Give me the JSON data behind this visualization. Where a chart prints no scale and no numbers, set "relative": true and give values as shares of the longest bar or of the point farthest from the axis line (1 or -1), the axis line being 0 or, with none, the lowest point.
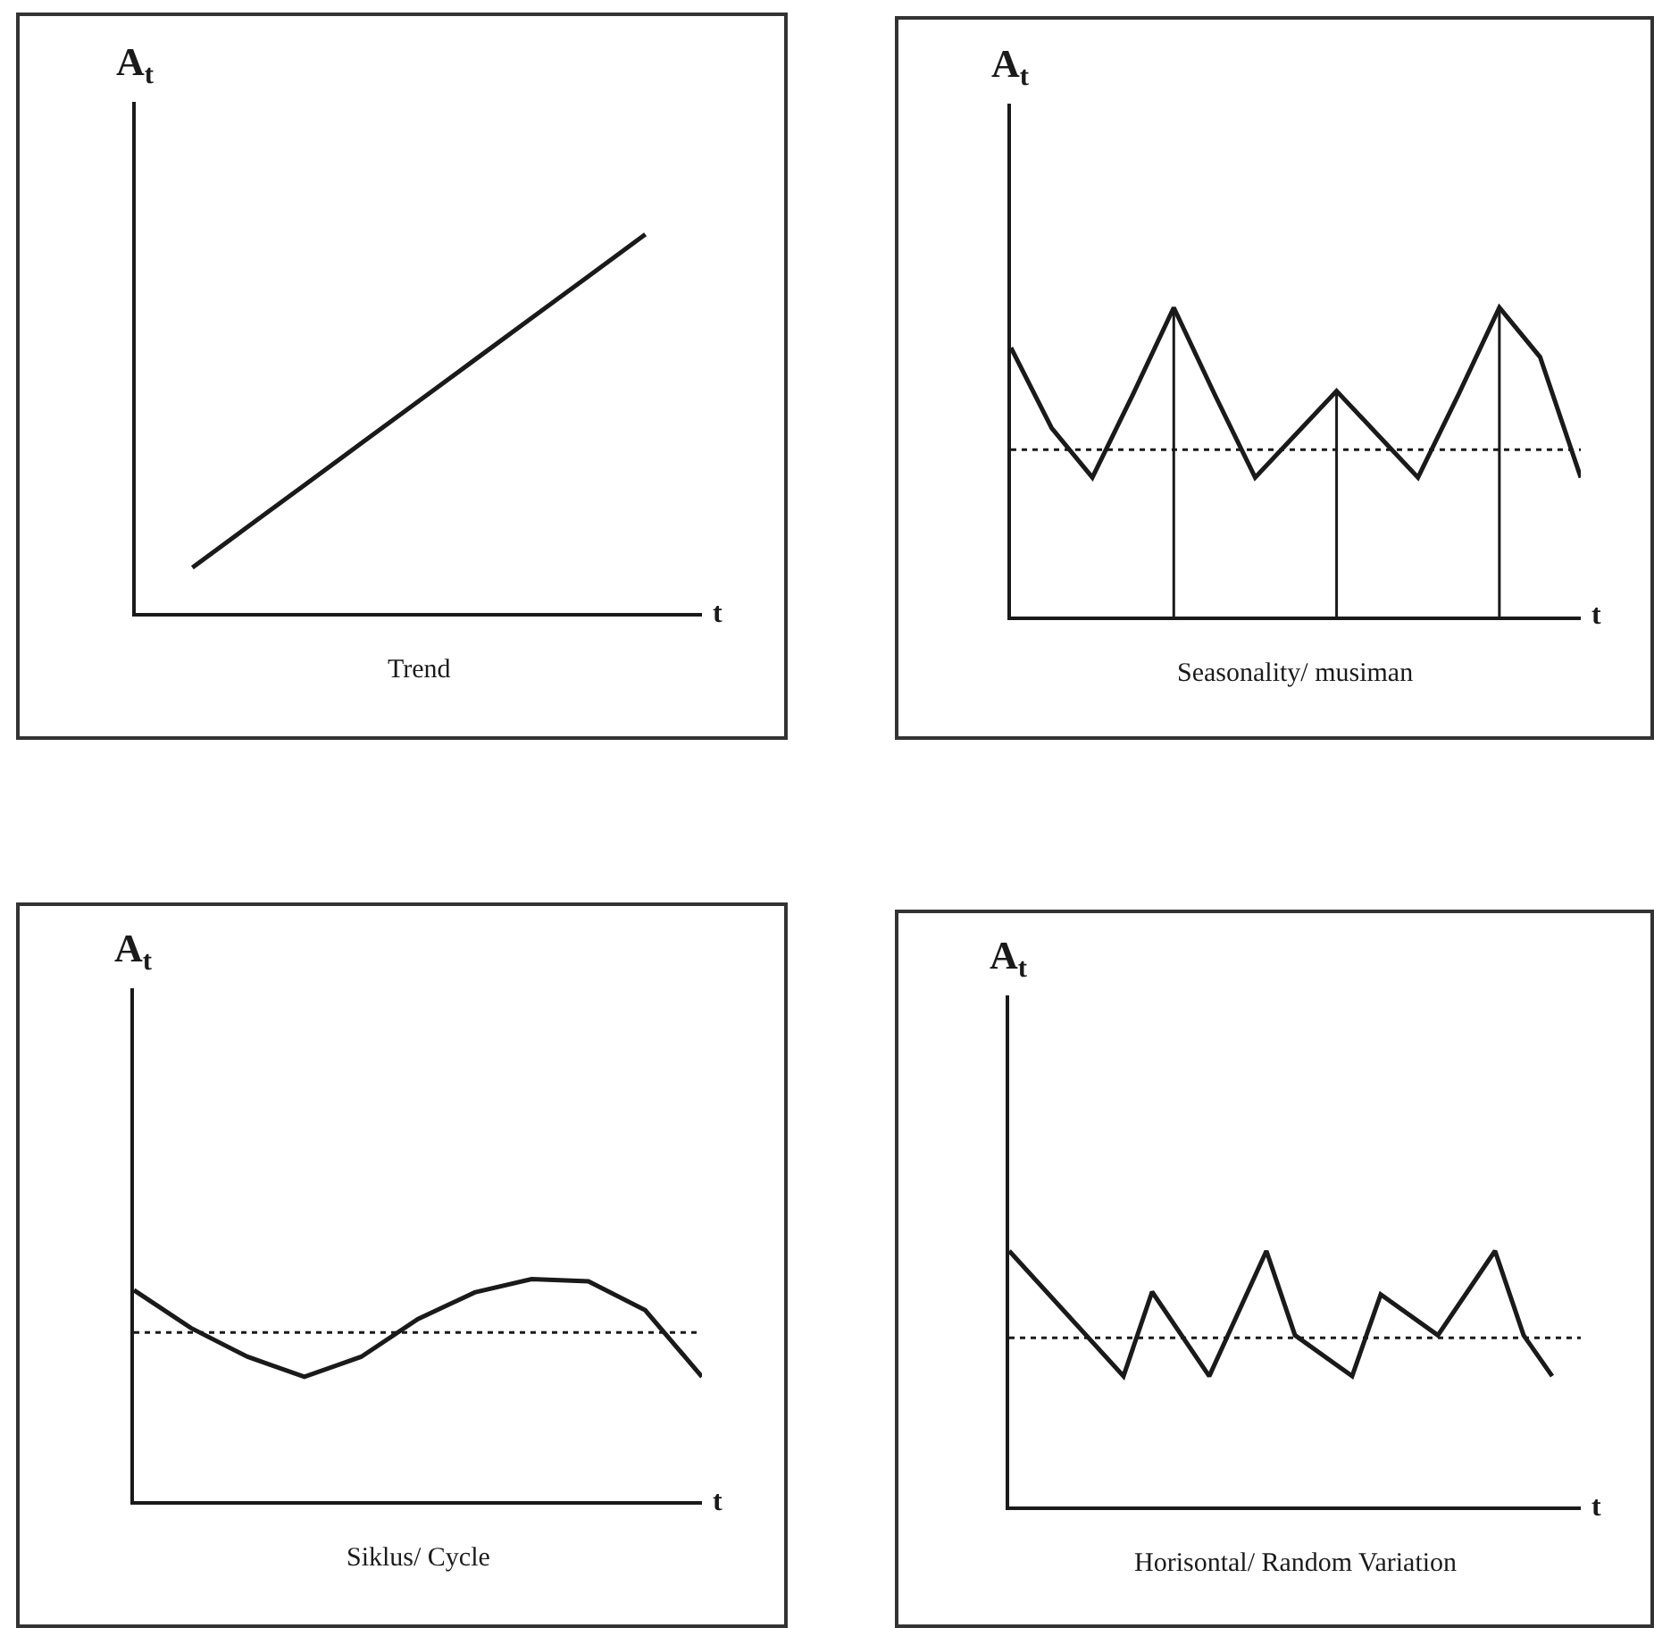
{
  "chart_data": [
    {
      "type": "line",
      "title": "Trend",
      "xlabel": "t",
      "ylabel": "A$_{t}$",
      "relative": true,
      "marker": "none",
      "categories": [
        null,
        null,
        null,
        null,
        null,
        null,
        null,
        null,
        null,
        null,
        null
      ],
      "series": [
        {
          "color": "#1a1a1a",
          "values": [
            null,
            0.12,
            0.23,
            0.34,
            0.45,
            0.56,
            0.67,
            0.78,
            0.89,
            1.0,
            null
          ]
        }
      ]
    },
    {
      "type": "line",
      "title": "Seasonality/ musiman",
      "xlabel": "t",
      "ylabel": "A$_{t}$",
      "relative": true,
      "marker": "none",
      "categories": [
        null,
        null,
        null,
        null,
        null,
        null,
        null,
        null,
        null,
        null,
        null,
        null,
        null,
        null,
        null
      ],
      "series": [
        {
          "color": "#1a1a1a",
          "values": [
            0.87,
            0.61,
            0.45,
            0.72,
            1.0,
            0.72,
            0.45,
            0.59,
            0.73,
            0.59,
            0.45,
            0.72,
            1.0,
            0.84,
            0.45
          ]
        }
      ],
      "ref_lines": [
        {
          "axis": "y",
          "value": 0.54,
          "color": "#1a1a1a",
          "line_style": "dotted"
        }
      ]
    },
    {
      "type": "line",
      "title": "Siklus/ Cycle",
      "xlabel": "t",
      "ylabel": "A$_{t}$",
      "relative": true,
      "marker": "none",
      "categories": [
        null,
        null,
        null,
        null,
        null,
        null,
        null,
        null,
        null,
        null,
        null
      ],
      "series": [
        {
          "color": "#1a1a1a",
          "values": [
            0.95,
            0.78,
            0.65,
            0.56,
            0.65,
            0.82,
            0.94,
            1.0,
            0.99,
            0.86,
            0.56
          ]
        }
      ],
      "ref_lines": [
        {
          "axis": "y",
          "value": 0.76,
          "color": "#1a1a1a",
          "line_style": "dotted"
        }
      ]
    },
    {
      "type": "line",
      "title": "Horisontal/ Random Variation",
      "xlabel": "t",
      "ylabel": "A$_{t}$",
      "relative": true,
      "marker": "none",
      "categories": [
        null,
        null,
        null,
        null,
        null,
        null,
        null,
        null,
        null,
        null,
        null,
        null,
        null,
        null,
        null,
        null,
        null,
        null,
        null,
        null,
        null
      ],
      "series": [
        {
          "color": "#1a1a1a",
          "values": [
            1.0,
            null,
            null,
            null,
            0.51,
            0.84,
            null,
            0.51,
            null,
            1.0,
            0.67,
            null,
            0.51,
            0.83,
            null,
            0.67,
            null,
            1.0,
            0.67,
            0.51,
            null
          ]
        }
      ],
      "ref_lines": [
        {
          "axis": "y",
          "value": 0.66,
          "color": "#1a1a1a",
          "line_style": "dotted"
        }
      ]
    }
  ]
}
